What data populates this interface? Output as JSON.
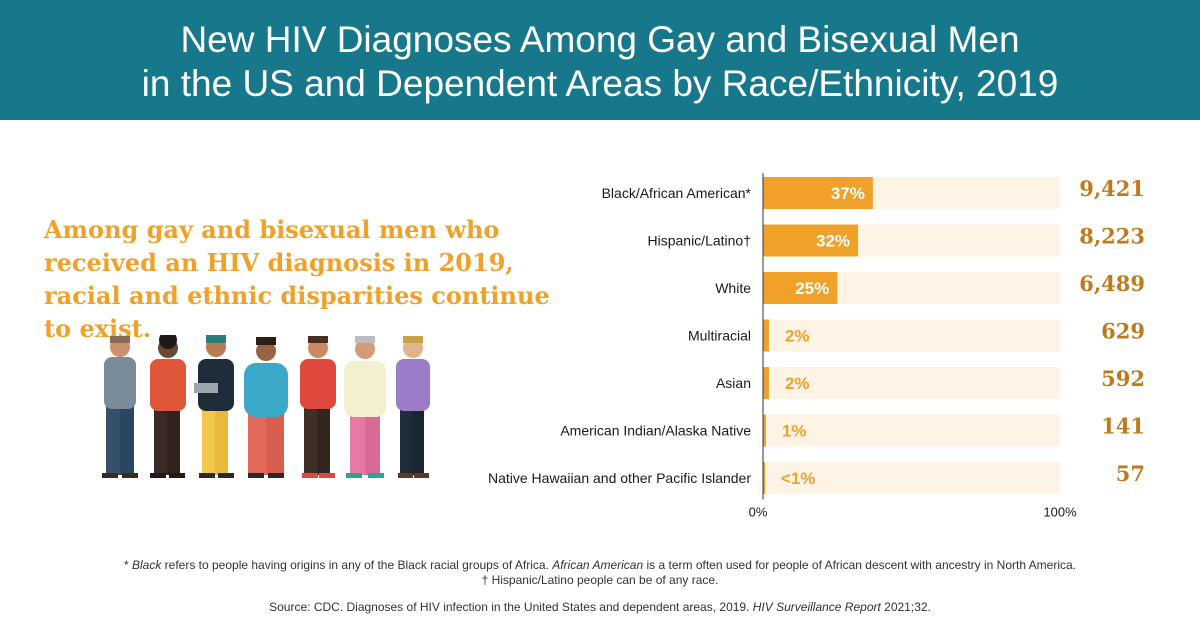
{
  "header": {
    "title_line1": "New HIV Diagnoses Among Gay and Bisexual Men",
    "title_line2": "in the US and Dependent Areas by Race/Ethnicity, 2019"
  },
  "tagline": "Among gay and bisexual men who received an HIV diagnosis in 2019, racial and ethnic disparities continue to exist.",
  "colors": {
    "header_bg": "#16788a",
    "bar": "#f0a12a",
    "track": "#fdf4e6",
    "count_text": "#c07a1e"
  },
  "chart_data": {
    "type": "bar",
    "orientation": "horizontal",
    "categories": [
      "Black/African American*",
      "Hispanic/Latino†",
      "White",
      "Multiracial",
      "Asian",
      "American Indian/Alaska Native",
      "Native Hawaiian and other Pacific Islander"
    ],
    "values": [
      37,
      32,
      25,
      2,
      2,
      1,
      0.5
    ],
    "value_labels": [
      "37%",
      "32%",
      "25%",
      "2%",
      "2%",
      "1%",
      "<1%"
    ],
    "counts": [
      "9,421",
      "8,223",
      "6,489",
      "629",
      "592",
      "141",
      "57"
    ],
    "xlim": [
      0,
      100
    ],
    "x_tick_labels": [
      "0%",
      "100%"
    ]
  },
  "footnotes": {
    "black_term": "Black",
    "black_mid": " refers to people having origins in any of the Black racial groups of Africa. ",
    "aa_term": "African American",
    "black_end": " is a term often used for people of African descent with ancestry in North America.",
    "hispanic": "† Hispanic/Latino people can be of any race.",
    "source_prefix": "Source: CDC. Diagnoses of HIV infection in the United States and dependent areas, 2019. ",
    "source_italic": "HIV Surveillance Report",
    "source_suffix": " 2021;32."
  }
}
